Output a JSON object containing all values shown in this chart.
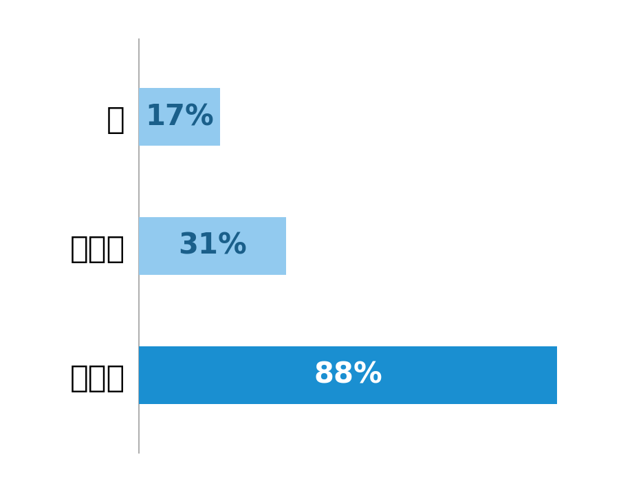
{
  "categories": [
    "円",
    "ユーロ",
    "米ドル"
  ],
  "values": [
    17,
    31,
    88
  ],
  "bar_colors": [
    "#92caef",
    "#92caef",
    "#1a8fd1"
  ],
  "label_colors": [
    "#1a5f8a",
    "#1a5f8a",
    "#ffffff"
  ],
  "label_texts": [
    "17%",
    "31%",
    "88%"
  ],
  "label_fontsize": 30,
  "tick_fontsize": 32,
  "background_color": "#ffffff",
  "bar_height": 0.45,
  "xlim": [
    0,
    100
  ],
  "spine_color": "#b0b0b0"
}
